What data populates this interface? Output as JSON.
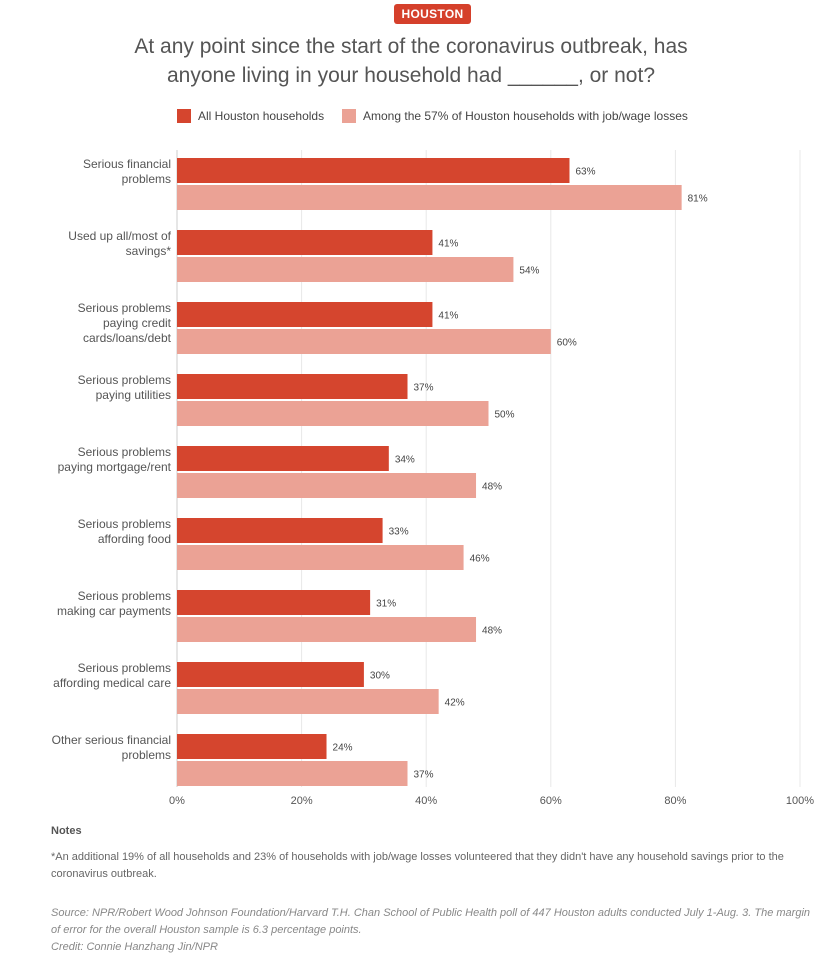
{
  "header": {
    "badge": "HOUSTON",
    "title_line1": "At any point since the start of the coronavirus outbreak, has",
    "title_line2": "anyone living in your household had ______, or not?"
  },
  "colors": {
    "all": "#d5452e",
    "losses": "#eba295",
    "grid": "#e8e8e8"
  },
  "chart_data": {
    "type": "bar",
    "orientation": "horizontal",
    "categories": [
      [
        "Serious financial",
        "problems"
      ],
      [
        "Used up all/most of",
        "savings*"
      ],
      [
        "Serious problems",
        "paying credit",
        "cards/loans/debt"
      ],
      [
        "Serious problems",
        "paying utilities"
      ],
      [
        "Serious problems",
        "paying mortgage/rent"
      ],
      [
        "Serious problems",
        "affording food"
      ],
      [
        "Serious problems",
        "making car payments"
      ],
      [
        "Serious problems",
        "affording medical care"
      ],
      [
        "Other serious financial",
        "problems"
      ]
    ],
    "series": [
      {
        "name": "All Houston households",
        "values": [
          63,
          41,
          41,
          37,
          34,
          33,
          31,
          30,
          24
        ]
      },
      {
        "name": "Among the 57% of Houston households with job/wage losses",
        "values": [
          81,
          54,
          60,
          50,
          48,
          46,
          48,
          42,
          37
        ]
      }
    ],
    "xlim": [
      0,
      100
    ],
    "xticks": [
      "0%",
      "20%",
      "40%",
      "60%",
      "80%",
      "100%"
    ],
    "value_suffix": "%",
    "grid": true,
    "legend_position": "top"
  },
  "footer": {
    "notes_heading": "Notes",
    "note": "*An additional 19% of all households and 23% of households with job/wage losses volunteered that they didn't have any household savings prior to the coronavirus outbreak.",
    "source": "Source: NPR/Robert Wood Johnson Foundation/Harvard T.H. Chan School of Public Health poll of 447 Houston adults conducted July 1-Aug. 3. The margin of error for the overall Houston sample is 6.3 percentage points.",
    "credit": "Credit: Connie Hanzhang Jin/NPR"
  }
}
